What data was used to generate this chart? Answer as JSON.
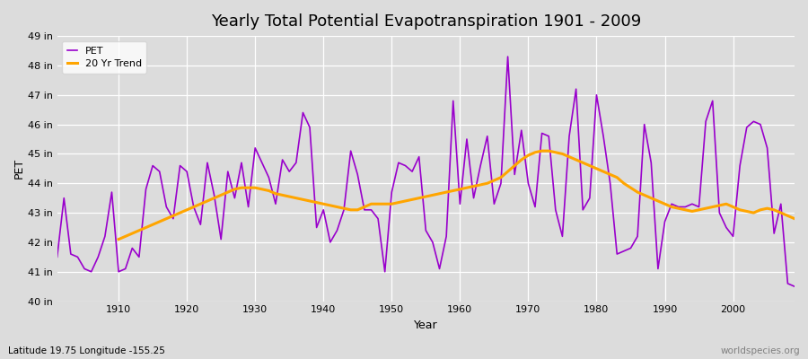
{
  "title": "Yearly Total Potential Evapotranspiration 1901 - 2009",
  "xlabel": "Year",
  "ylabel": "PET",
  "subtitle_left": "Latitude 19.75 Longitude -155.25",
  "subtitle_right": "worldspecies.org",
  "pet_color": "#9900cc",
  "trend_color": "#FFA500",
  "bg_color": "#dcdcdc",
  "plot_bg_color": "#dcdcdc",
  "ylim": [
    40,
    49
  ],
  "yticks": [
    40,
    41,
    42,
    43,
    44,
    45,
    46,
    47,
    48,
    49
  ],
  "ytick_labels": [
    "40 in",
    "41 in",
    "42 in",
    "43 in",
    "44 in",
    "45 in",
    "46 in",
    "47 in",
    "48 in",
    "49 in"
  ],
  "years": [
    1901,
    1902,
    1903,
    1904,
    1905,
    1906,
    1907,
    1908,
    1909,
    1910,
    1911,
    1912,
    1913,
    1914,
    1915,
    1916,
    1917,
    1918,
    1919,
    1920,
    1921,
    1922,
    1923,
    1924,
    1925,
    1926,
    1927,
    1928,
    1929,
    1930,
    1931,
    1932,
    1933,
    1934,
    1935,
    1936,
    1937,
    1938,
    1939,
    1940,
    1941,
    1942,
    1943,
    1944,
    1945,
    1946,
    1947,
    1948,
    1949,
    1950,
    1951,
    1952,
    1953,
    1954,
    1955,
    1956,
    1957,
    1958,
    1959,
    1960,
    1961,
    1962,
    1963,
    1964,
    1965,
    1966,
    1967,
    1968,
    1969,
    1970,
    1971,
    1972,
    1973,
    1974,
    1975,
    1976,
    1977,
    1978,
    1979,
    1980,
    1981,
    1982,
    1983,
    1984,
    1985,
    1986,
    1987,
    1988,
    1989,
    1990,
    1991,
    1992,
    1993,
    1994,
    1995,
    1996,
    1997,
    1998,
    1999,
    2000,
    2001,
    2002,
    2003,
    2004,
    2005,
    2006,
    2007,
    2008,
    2009
  ],
  "pet_values": [
    41.5,
    43.5,
    41.6,
    41.5,
    41.1,
    41.0,
    41.5,
    42.2,
    43.7,
    41.0,
    41.1,
    41.8,
    41.5,
    43.8,
    44.6,
    44.4,
    43.2,
    42.8,
    44.6,
    44.4,
    43.2,
    42.6,
    44.7,
    43.6,
    42.1,
    44.4,
    43.5,
    44.7,
    43.2,
    45.2,
    44.7,
    44.2,
    43.3,
    44.8,
    44.4,
    44.7,
    46.4,
    45.9,
    42.5,
    43.1,
    42.0,
    42.4,
    43.1,
    45.1,
    44.3,
    43.1,
    43.1,
    42.8,
    41.0,
    43.7,
    44.7,
    44.6,
    44.4,
    44.9,
    42.4,
    42.0,
    41.1,
    42.2,
    46.8,
    43.3,
    45.5,
    43.5,
    44.6,
    45.6,
    43.3,
    44.0,
    48.3,
    44.3,
    45.8,
    44.0,
    43.2,
    45.7,
    45.6,
    43.1,
    42.2,
    45.6,
    47.2,
    43.1,
    43.5,
    47.0,
    45.6,
    44.0,
    41.6,
    41.7,
    41.8,
    42.2,
    46.0,
    44.7,
    41.1,
    42.7,
    43.3,
    43.2,
    43.2,
    43.3,
    43.2,
    46.1,
    46.8,
    43.0,
    42.5,
    42.2,
    44.6,
    45.9,
    46.1,
    46.0,
    45.2,
    42.3,
    43.3,
    40.6,
    40.5
  ],
  "trend_years": [
    1910,
    1911,
    1912,
    1913,
    1914,
    1915,
    1916,
    1917,
    1918,
    1919,
    1920,
    1921,
    1922,
    1923,
    1924,
    1925,
    1926,
    1927,
    1928,
    1929,
    1930,
    1931,
    1932,
    1933,
    1934,
    1935,
    1936,
    1937,
    1938,
    1939,
    1940,
    1941,
    1942,
    1943,
    1944,
    1945,
    1946,
    1947,
    1948,
    1949,
    1950,
    1951,
    1952,
    1953,
    1954,
    1955,
    1956,
    1957,
    1958,
    1959,
    1960,
    1961,
    1962,
    1963,
    1964,
    1965,
    1966,
    1967,
    1968,
    1969,
    1970,
    1971,
    1972,
    1973,
    1974,
    1975,
    1976,
    1977,
    1978,
    1979,
    1980,
    1981,
    1982,
    1983,
    1984,
    1985,
    1986,
    1987,
    1988,
    1989,
    1990,
    1991,
    1992,
    1993,
    1994,
    1995,
    1996,
    1997,
    1998,
    1999,
    2000,
    2001,
    2002,
    2003,
    2004,
    2005,
    2006,
    2007,
    2008,
    2009
  ],
  "trend_values": [
    42.1,
    42.2,
    42.3,
    42.4,
    42.5,
    42.6,
    42.7,
    42.8,
    42.9,
    43.0,
    43.1,
    43.2,
    43.3,
    43.4,
    43.5,
    43.6,
    43.7,
    43.8,
    43.85,
    43.85,
    43.85,
    43.8,
    43.75,
    43.65,
    43.6,
    43.55,
    43.5,
    43.45,
    43.4,
    43.35,
    43.3,
    43.25,
    43.2,
    43.15,
    43.1,
    43.1,
    43.2,
    43.3,
    43.3,
    43.3,
    43.3,
    43.35,
    43.4,
    43.45,
    43.5,
    43.55,
    43.6,
    43.65,
    43.7,
    43.75,
    43.8,
    43.85,
    43.9,
    43.95,
    44.0,
    44.1,
    44.2,
    44.4,
    44.6,
    44.8,
    44.95,
    45.05,
    45.1,
    45.1,
    45.05,
    45.0,
    44.9,
    44.8,
    44.7,
    44.6,
    44.5,
    44.4,
    44.3,
    44.2,
    44.0,
    43.85,
    43.7,
    43.6,
    43.5,
    43.4,
    43.3,
    43.2,
    43.15,
    43.1,
    43.05,
    43.1,
    43.15,
    43.2,
    43.25,
    43.3,
    43.2,
    43.1,
    43.05,
    43.0,
    43.1,
    43.15,
    43.1,
    43.0,
    42.9,
    42.8
  ]
}
